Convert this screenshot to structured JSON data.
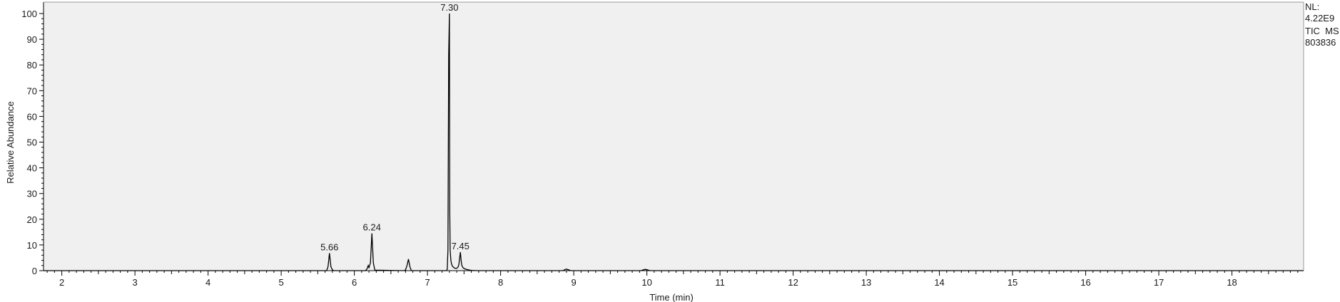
{
  "info": {
    "nl_label": "NL:",
    "nl_value": "4.22E9",
    "trace_label": "TIC  MS",
    "sample_id": "803836"
  },
  "colors": {
    "plot_background": "#f0f0f0",
    "trace": "#000000",
    "axis": "#000000"
  },
  "chart_data": {
    "type": "line",
    "title": "",
    "xlabel": "Time (min)",
    "ylabel": "Relative Abundance",
    "xlim": [
      1.75,
      18.98
    ],
    "ylim": [
      0,
      100
    ],
    "x_ticks": [
      2,
      3,
      4,
      5,
      6,
      7,
      8,
      9,
      10,
      11,
      12,
      13,
      14,
      15,
      16,
      17,
      18
    ],
    "y_ticks": [
      0,
      10,
      20,
      30,
      40,
      50,
      60,
      70,
      80,
      90,
      100
    ],
    "grid": false,
    "series": [
      {
        "x": [
          1.75,
          5.62,
          5.64,
          5.66,
          5.68,
          5.7,
          5.72,
          6.15,
          6.17,
          6.19,
          6.2,
          6.22,
          6.24,
          6.26,
          6.28,
          6.68,
          6.7,
          6.72,
          6.74,
          6.76,
          6.78,
          7.26,
          7.27,
          7.28,
          7.29,
          7.3,
          7.305,
          7.31,
          7.315,
          7.32,
          7.33,
          7.34,
          7.36,
          7.38,
          7.4,
          7.42,
          7.43,
          7.44,
          7.45,
          7.46,
          7.47,
          7.49,
          7.52,
          7.56,
          7.6,
          7.7,
          8.85,
          8.88,
          8.9,
          8.93,
          8.96,
          9.92,
          9.95,
          9.98,
          10.01,
          10.04,
          18.98
        ],
        "y": [
          0,
          0,
          1.5,
          6.8,
          1.5,
          0.3,
          0,
          0,
          0.5,
          2,
          1.2,
          3,
          14.5,
          3,
          0.2,
          0,
          0.3,
          2,
          4.5,
          1.5,
          0,
          0,
          0.5,
          8,
          84,
          100,
          22,
          8,
          6,
          4,
          2.5,
          1.8,
          1.2,
          0.9,
          0.9,
          1.5,
          2.5,
          5,
          7.2,
          4,
          2,
          1,
          0.6,
          0.3,
          0.1,
          0,
          0,
          0.4,
          0.6,
          0.3,
          0,
          0,
          0.3,
          0.5,
          0.3,
          0,
          0
        ]
      }
    ],
    "annotations": [
      {
        "x": 5.66,
        "y": 6.8,
        "text": "5.66"
      },
      {
        "x": 6.24,
        "y": 14.5,
        "text": "6.24"
      },
      {
        "x": 7.3,
        "y": 100,
        "text": "7.30"
      },
      {
        "x": 7.45,
        "y": 7.2,
        "text": "7.45"
      }
    ]
  }
}
